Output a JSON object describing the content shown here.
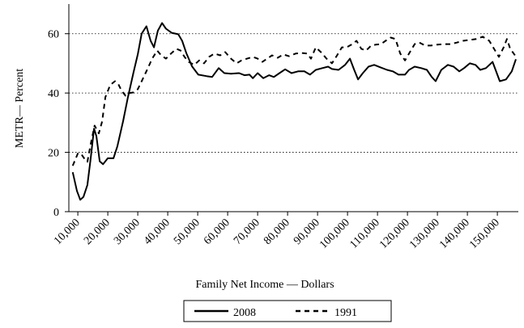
{
  "chart_data": {
    "type": "line",
    "y_label": "METR— Percent",
    "x_label": "Family Net Income — Dollars",
    "xlim": [
      7000,
      157000
    ],
    "ylim": [
      0,
      70
    ],
    "yticks": [
      0,
      20,
      40,
      60
    ],
    "xticks": [
      {
        "value": 10000,
        "label": "10,000"
      },
      {
        "value": 20000,
        "label": "20,000"
      },
      {
        "value": 30000,
        "label": "30,000"
      },
      {
        "value": 40000,
        "label": "40,000"
      },
      {
        "value": 50000,
        "label": "50,000"
      },
      {
        "value": 60000,
        "label": "60,000"
      },
      {
        "value": 70000,
        "label": "70,000"
      },
      {
        "value": 80000,
        "label": "80,000"
      },
      {
        "value": 90000,
        "label": "90,000"
      },
      {
        "value": 100000,
        "label": "100,000"
      },
      {
        "value": 110000,
        "label": "110,000"
      },
      {
        "value": 120000,
        "label": "120,000"
      },
      {
        "value": 130000,
        "label": "130,000"
      },
      {
        "value": 140000,
        "label": "140,000"
      },
      {
        "value": 150000,
        "label": "150,000"
      }
    ],
    "grid": true,
    "legend": "bottom",
    "series": [
      {
        "name": "2008",
        "color": "#000000",
        "dash": "solid",
        "x": [
          8300,
          9700,
          10800,
          11900,
          13200,
          14300,
          15400,
          16200,
          17300,
          18400,
          20000,
          21900,
          23200,
          25100,
          26700,
          28600,
          30000,
          31300,
          32900,
          34300,
          35400,
          36700,
          38100,
          39400,
          41300,
          43500,
          44800,
          46200,
          48100,
          50200,
          52900,
          54800,
          57000,
          58900,
          61100,
          63800,
          65600,
          67300,
          68400,
          70000,
          71900,
          73800,
          75400,
          77300,
          79200,
          81300,
          83500,
          85600,
          87500,
          89400,
          91600,
          93500,
          94800,
          97000,
          99200,
          100800,
          102100,
          103500,
          105100,
          107000,
          108900,
          111100,
          113200,
          115100,
          117000,
          119200,
          120500,
          122400,
          124600,
          126500,
          128100,
          129400,
          131300,
          133500,
          135400,
          137300,
          138900,
          140800,
          142700,
          144300,
          146200,
          148400,
          149400,
          150800,
          152900,
          154800,
          156200
        ],
        "values": [
          13.3,
          7,
          4,
          5,
          9,
          18,
          28,
          25.5,
          17,
          16,
          18,
          18,
          22,
          30.5,
          38.5,
          47,
          53,
          60,
          62.5,
          57.6,
          55.4,
          61,
          63.6,
          61.7,
          60.3,
          59.8,
          57.6,
          53.5,
          49,
          46.2,
          45.7,
          45.4,
          48.4,
          46.7,
          46.5,
          46.7,
          46,
          46.2,
          45,
          46.7,
          45,
          46,
          45.4,
          46.7,
          48,
          46.7,
          47.3,
          47.3,
          46.2,
          47.8,
          48.4,
          48.9,
          48.1,
          47.8,
          49.5,
          51.6,
          48.1,
          44.6,
          46.7,
          48.9,
          49.5,
          48.6,
          47.8,
          47.3,
          46.2,
          46.2,
          47.8,
          48.9,
          48.4,
          47.8,
          45.4,
          44,
          47.8,
          49.5,
          48.9,
          47.3,
          48.4,
          50,
          49.5,
          47.8,
          48.4,
          50.5,
          47.8,
          44,
          44.6,
          47.3,
          51.4
        ]
      },
      {
        "name": "1991",
        "color": "#000000",
        "dash": "dashed",
        "x": [
          8300,
          10000,
          11000,
          12100,
          13200,
          14300,
          15600,
          17000,
          18100,
          19200,
          20800,
          22400,
          23500,
          24600,
          25900,
          27300,
          28600,
          30000,
          31600,
          33200,
          34800,
          36500,
          37800,
          39400,
          41300,
          42900,
          44300,
          45600,
          47000,
          48900,
          50500,
          52100,
          53800,
          55600,
          57500,
          59200,
          61100,
          63000,
          64600,
          66500,
          68400,
          70000,
          71600,
          73200,
          74800,
          76700,
          78600,
          80500,
          82700,
          84600,
          86500,
          87800,
          89400,
          91100,
          93000,
          94800,
          96500,
          98100,
          99700,
          101300,
          103000,
          104600,
          106200,
          107900,
          109400,
          111100,
          112700,
          114400,
          116000,
          117600,
          119200,
          120800,
          122400,
          124000,
          125900,
          127800,
          129900,
          132100,
          134300,
          136500,
          138600,
          140800,
          143000,
          145100,
          147300,
          148900,
          150500,
          152100,
          153200,
          154300,
          155900
        ],
        "values": [
          15.5,
          19.6,
          19.6,
          18,
          16.8,
          22.8,
          29,
          26.4,
          30.4,
          38.6,
          42.7,
          44,
          43,
          40.8,
          39.1,
          40,
          40.2,
          41.3,
          44.6,
          48,
          51.6,
          54.3,
          52.7,
          51.6,
          53.5,
          54.9,
          54.3,
          52.2,
          50.5,
          49.5,
          51,
          50,
          52.2,
          53.3,
          52.7,
          53.8,
          51.6,
          50,
          51,
          51.6,
          52.2,
          51.6,
          50.5,
          51.6,
          52.7,
          51.9,
          53,
          52.4,
          53.3,
          53.5,
          53.3,
          51.6,
          55.4,
          53.8,
          51.6,
          50,
          52.7,
          55.4,
          55.4,
          56.3,
          57.6,
          54.9,
          54.3,
          56,
          56.3,
          56.5,
          57.6,
          58.7,
          58.2,
          53.3,
          51,
          53.8,
          56.5,
          57,
          56,
          56,
          56.3,
          56.5,
          56.5,
          57,
          57.6,
          57.9,
          58.2,
          59,
          57.6,
          54.9,
          52.2,
          55.4,
          58.2,
          54.9,
          52.7
        ]
      }
    ]
  }
}
